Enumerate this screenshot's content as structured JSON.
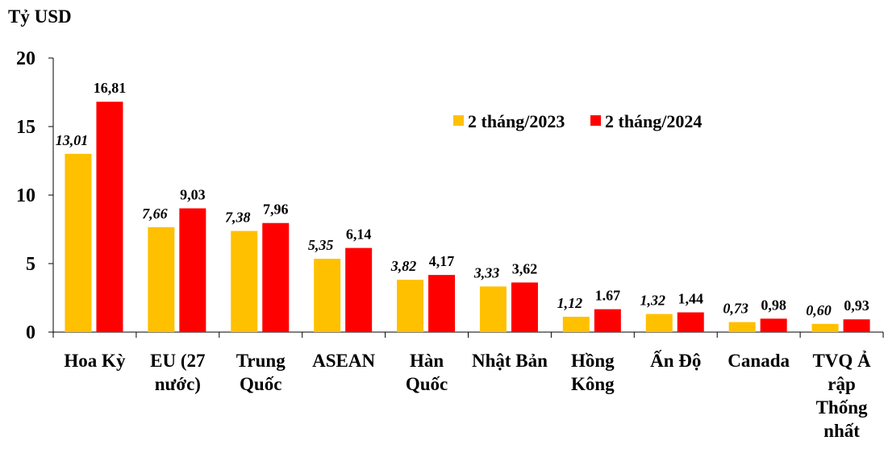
{
  "chart_data": {
    "type": "bar",
    "ylabel": "Tỷ USD",
    "ylim": [
      0,
      20
    ],
    "yticks": [
      "0",
      "5",
      "10",
      "15",
      "20"
    ],
    "ytick_values": [
      0,
      5,
      10,
      15,
      20
    ],
    "legend_position": "top-right",
    "grid": false,
    "categories": [
      [
        "Hoa Kỳ"
      ],
      [
        "EU (27",
        "nước)"
      ],
      [
        "Trung",
        "Quốc"
      ],
      [
        "ASEAN"
      ],
      [
        "Hàn",
        "Quốc"
      ],
      [
        "Nhật Bản"
      ],
      [
        "Hồng",
        "Kông"
      ],
      [
        "Ấn Độ"
      ],
      [
        "Canada"
      ],
      [
        "TVQ Ả",
        "rập",
        "Thống",
        "nhất"
      ]
    ],
    "series": [
      {
        "name": "2 tháng/2023",
        "color": "#FFC000",
        "values": [
          13.01,
          7.66,
          7.38,
          5.35,
          3.82,
          3.33,
          1.12,
          1.32,
          0.73,
          0.6
        ],
        "labels": [
          "13,01",
          "7,66",
          "7,38",
          "5,35",
          "3,82",
          "3,33",
          "1,12",
          "1,32",
          "0,73",
          "0,60"
        ],
        "label_style": "italic"
      },
      {
        "name": "2 tháng/2024",
        "color": "#FF0000",
        "values": [
          16.81,
          9.03,
          7.96,
          6.14,
          4.17,
          3.62,
          1.67,
          1.44,
          0.98,
          0.93
        ],
        "labels": [
          "16,81",
          "9,03",
          "7,96",
          "6,14",
          "4,17",
          "3,62",
          "1.67",
          "1,44",
          "0,98",
          "0,93"
        ],
        "label_style": "normal"
      }
    ]
  }
}
